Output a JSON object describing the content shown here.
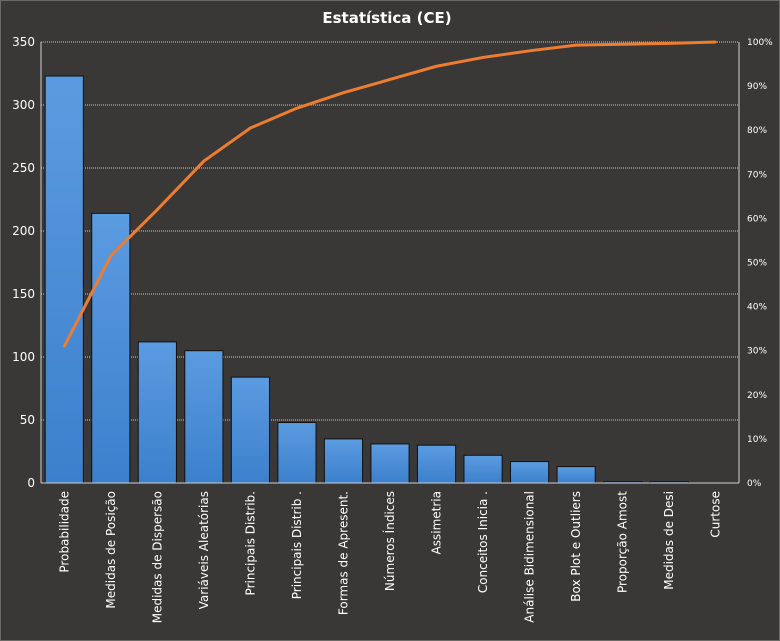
{
  "chart_data": {
    "type": "bar",
    "title": "Estatística  (CE)",
    "categories": [
      "Probabilidade",
      "Medidas de Posição",
      "Medidas de Dispersão",
      "Variáveis Aleatórias",
      "Principais Distrib.",
      "Principais Distrib .",
      "Formas de Apresent.",
      "Números Índices",
      "Assimetria",
      "Conceitos Inicia .",
      "Análise Bidimensional",
      "Box Plot e Outliers",
      "Proporção  Amost",
      "Medidas de Desi",
      "Curtose"
    ],
    "series": [
      {
        "type": "bar",
        "values": [
          323,
          214,
          112,
          105,
          84,
          48,
          35,
          31,
          30,
          22,
          17,
          13,
          1,
          1,
          0
        ],
        "color": "#4a90d9"
      },
      {
        "type": "line",
        "axis": "secondary",
        "values": [
          0.31,
          0.515,
          0.62,
          0.73,
          0.805,
          0.85,
          0.885,
          0.915,
          0.945,
          0.965,
          0.98,
          0.993,
          0.995,
          0.997,
          1.0
        ],
        "color": "#ed7d31"
      }
    ],
    "ylim": [
      0,
      350
    ],
    "yticks": [
      "0",
      "50",
      "100",
      "150",
      "200",
      "250",
      "300",
      "350"
    ],
    "y2lim": [
      0,
      1
    ],
    "y2ticks": [
      "0%",
      "10%",
      "20%",
      "30%",
      "40%",
      "50%",
      "60%",
      "70%",
      "80%",
      "90%",
      "100%"
    ],
    "xlabel": "",
    "ylabel": "",
    "grid": "horizontal dotted",
    "legend": "none"
  }
}
